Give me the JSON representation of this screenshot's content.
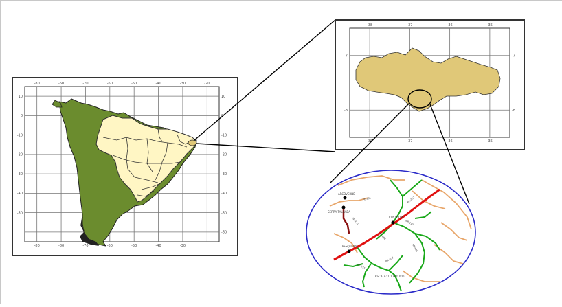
{
  "colors": {
    "south_america_land": "#6b8c2e",
    "brazil_land": "#fff6c4",
    "state_land": "#e0c878",
    "ellipse_stroke": "#2a2ac8",
    "road_major": "#e01010",
    "road_green": "#19a819",
    "road_orange": "#e8a66a",
    "road_dark": "#8a1010",
    "frame": "#333333",
    "grid": "#777777"
  },
  "south_america_map": {
    "top_ticks": [
      "-80",
      "-60",
      "-70",
      "-60",
      "-50",
      "-40",
      "-30",
      "-20"
    ],
    "bottom_ticks": [
      "-80",
      "-80",
      "-70",
      "-60",
      "-50",
      "-40",
      "-30"
    ],
    "left_ticks": [
      "10",
      "0",
      "-10",
      "-20",
      "-30",
      "-40",
      "-50"
    ],
    "right_ticks": [
      "10",
      "0",
      "-10",
      "-20",
      "-30",
      "-40",
      "-50",
      "-60"
    ]
  },
  "state_map": {
    "top_ticks": [
      "-38",
      "-37",
      "-36",
      "-35"
    ],
    "bottom_ticks": [
      "-38",
      "-37",
      "-36",
      "-35"
    ],
    "left_ticks": [
      "-7",
      "-8"
    ],
    "right_ticks": [
      "-7",
      "-8"
    ]
  },
  "detail_map": {
    "town_labels": [
      "ARCOVERDE",
      "CUSTÓDIA",
      "SERRA TALHADA",
      "PESQUEIRA"
    ],
    "road_labels": [
      "PE-365",
      "BR-232",
      "PE-320",
      "BR-110",
      "PE-280",
      "BR-424",
      "PE-275",
      "BR-408"
    ],
    "scale_label": "ESCALA: 1:1.000.000"
  }
}
